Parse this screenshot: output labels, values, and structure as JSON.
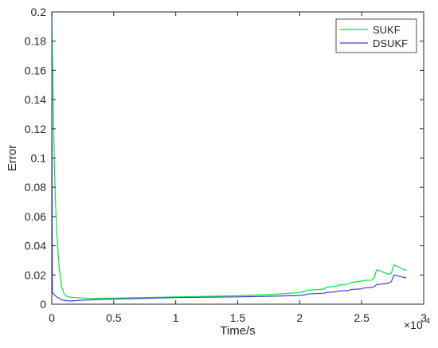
{
  "chart_data": {
    "type": "line",
    "xlabel": "Time/s",
    "ylabel": "Error",
    "x_exponent_text": "×10",
    "x_exponent_power": "4",
    "xlim": [
      0,
      3
    ],
    "ylim": [
      0,
      0.2
    ],
    "xticks": [
      0,
      0.5,
      1,
      1.5,
      2,
      2.5,
      3
    ],
    "xtick_labels": [
      "0",
      "0.5",
      "1",
      "1.5",
      "2",
      "2.5",
      "3"
    ],
    "yticks": [
      0,
      0.02,
      0.04,
      0.06,
      0.08,
      0.1,
      0.12,
      0.14,
      0.16,
      0.18,
      0.2
    ],
    "ytick_labels": [
      "0",
      "0.02",
      "0.04",
      "0.06",
      "0.08",
      "0.1",
      "0.12",
      "0.14",
      "0.16",
      "0.18",
      "0.2"
    ],
    "grid": false,
    "legend_position": "top-right",
    "series": [
      {
        "name": "SUKF",
        "color": "#00e63c",
        "x": [
          0,
          0.01,
          0.02,
          0.03,
          0.04,
          0.06,
          0.08,
          0.1,
          0.12,
          0.15,
          0.2,
          0.3,
          0.5,
          1.0,
          1.5,
          1.8,
          2.0,
          2.05,
          2.06,
          2.2,
          2.21,
          2.3,
          2.31,
          2.4,
          2.41,
          2.5,
          2.51,
          2.58,
          2.6,
          2.62,
          2.64,
          2.72,
          2.74,
          2.76,
          2.86
        ],
        "y": [
          0.2,
          0.15,
          0.1,
          0.07,
          0.05,
          0.025,
          0.012,
          0.007,
          0.0055,
          0.0048,
          0.0045,
          0.004,
          0.0042,
          0.005,
          0.0058,
          0.0068,
          0.008,
          0.009,
          0.0095,
          0.0104,
          0.0115,
          0.0123,
          0.013,
          0.0138,
          0.0148,
          0.0158,
          0.0162,
          0.0165,
          0.0175,
          0.0235,
          0.023,
          0.0205,
          0.0213,
          0.027,
          0.023
        ]
      },
      {
        "name": "DSUKF",
        "color": "#4040c8",
        "x": [
          0,
          0.005,
          0.01,
          0.02,
          0.04,
          0.07,
          0.1,
          0.15,
          0.25,
          0.5,
          1.0,
          1.5,
          1.8,
          2.0,
          2.05,
          2.06,
          2.2,
          2.21,
          2.3,
          2.31,
          2.4,
          2.41,
          2.5,
          2.51,
          2.58,
          2.6,
          2.62,
          2.64,
          2.72,
          2.74,
          2.76,
          2.86
        ],
        "y": [
          0.2,
          0.008,
          0.0075,
          0.0065,
          0.005,
          0.0035,
          0.0025,
          0.0022,
          0.0028,
          0.0035,
          0.0045,
          0.005,
          0.0055,
          0.006,
          0.0065,
          0.007,
          0.0075,
          0.008,
          0.0085,
          0.009,
          0.0095,
          0.01,
          0.0105,
          0.011,
          0.0115,
          0.0118,
          0.0135,
          0.0135,
          0.0145,
          0.0155,
          0.02,
          0.018
        ]
      }
    ]
  }
}
